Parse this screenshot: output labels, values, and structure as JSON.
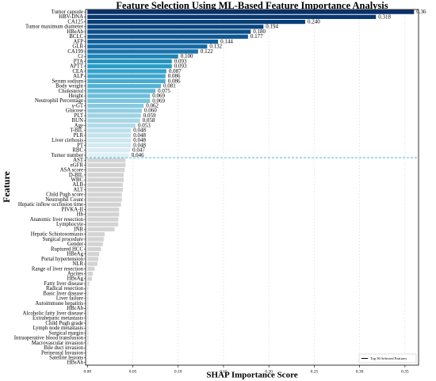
{
  "chart_data": {
    "type": "hbar",
    "title": "Feature Selection Using ML-Based Feature Importance Analysis",
    "xlabel": "SHAP Importance Score",
    "ylabel": "Feature",
    "categories": [
      "Tumor capsule",
      "HBV-DNA",
      "CA125",
      "Tumor maximum diameter",
      "HBeAb",
      "BCLC",
      "AFP",
      "GLR",
      "CA199",
      "Cr",
      "PTA",
      "APTT",
      "CEA",
      "ALP",
      "Serum sodium",
      "Body weight",
      "Cholesterol",
      "Height",
      "Neutrophil Percentage",
      "γ-GT",
      "Glucose",
      "PLT",
      "BUN",
      "Age",
      "T-BIL",
      "PLR",
      "Liver cirrhosis",
      "PT",
      "RBC",
      "Tumor number",
      "AST",
      "eGFR",
      "ASA score",
      "D-BIL",
      "WBC",
      "ALB",
      "ALT",
      "Child Pugh score",
      "Neutrophil Count",
      "Hepatic inflow occlusion time",
      "PIVKA-II",
      "Hb",
      "Anatomic liver resection",
      "Lymphocyte",
      "INR",
      "Hepatic Schistosomiasis",
      "Surgical procedure",
      "Gender",
      "Ruptured HCC",
      "HBeAg",
      "Portal hypertension",
      "NLR",
      "Range of liver resection",
      "Ascites",
      "HBsAg",
      "Fatty liver disease",
      "Radical resection",
      "Basic liver disease",
      "Liver failure",
      "Autoimmune hepatitis",
      "HBcAb",
      "Alcoholic fatty liver disease",
      "Extrahepatic metastasis",
      "Child Pugh grade",
      "Lymph node metastasis",
      "Surgical margin",
      "Intraoperative blood transfusion",
      "Macrovascular invasion",
      "Bile duct invasion",
      "Perineural Invasion",
      "Satellite lesions",
      "HBsAb"
    ],
    "values": [
      0.36,
      0.318,
      0.24,
      0.194,
      0.18,
      0.177,
      0.144,
      0.132,
      0.122,
      0.1,
      0.093,
      0.093,
      0.087,
      0.086,
      0.086,
      0.081,
      0.075,
      0.069,
      0.069,
      0.062,
      0.06,
      0.059,
      0.058,
      0.053,
      0.048,
      0.048,
      0.048,
      0.048,
      0.047,
      0.046,
      0.042,
      0.042,
      0.041,
      0.04,
      0.04,
      0.039,
      0.039,
      0.038,
      0.038,
      0.037,
      0.035,
      0.035,
      0.034,
      0.034,
      0.03,
      0.019,
      0.018,
      0.017,
      0.015,
      0.013,
      0.012,
      0.011,
      0.008,
      0.006,
      0.005,
      0.002,
      0.001,
      0.001,
      0.001,
      0.001,
      0.001,
      0.001,
      0.001,
      0.001,
      0.001,
      0.001,
      0.001,
      0.001,
      0,
      0,
      0,
      0
    ],
    "value_labels": [
      "0.36",
      "0.318",
      "0.240",
      "0.194",
      "0.180",
      "0.177",
      "0.144",
      "0.132",
      "0.122",
      "0.100",
      "0.093",
      "0.093",
      "0.087",
      "0.086",
      "0.086",
      "0.081",
      "0.075",
      "0.069",
      "0.069",
      "0.062",
      "0.060",
      "0.059",
      "0.058",
      "0.053",
      "0.048",
      "0.048",
      "0.048",
      "0.048",
      "0.047",
      "0.046",
      null,
      null,
      null,
      null,
      null,
      null,
      null,
      null,
      null,
      null,
      null,
      null,
      null,
      null,
      null,
      null,
      null,
      null,
      null,
      null,
      null,
      null,
      null,
      null,
      null,
      null,
      null,
      null,
      null,
      null,
      null,
      null,
      null,
      null,
      null,
      null,
      null,
      null,
      null,
      null,
      null,
      null
    ],
    "colors": [
      "#08306b",
      "#08386f",
      "#083f77",
      "#0a467f",
      "#0c4e88",
      "#0f5792",
      "#12609b",
      "#1669a4",
      "#1a73ad",
      "#1f86b6",
      "#2593c0",
      "#2b9bc6",
      "#35a1ca",
      "#40a7ce",
      "#4aacd1",
      "#56b2d4",
      "#62b8d7",
      "#6ebeda",
      "#7bc4dd",
      "#87c9df",
      "#93cee2",
      "#9ed3e4",
      "#a8d7e6",
      "#b2dbe9",
      "#bcdfeb",
      "#c5e3ed",
      "#cde7ef",
      "#d4eaf1",
      "#dbedf3",
      "#e1f0f5",
      "#d3d3d3",
      "#d3d3d3",
      "#d3d3d3",
      "#d3d3d3",
      "#d3d3d3",
      "#d3d3d3",
      "#d3d3d3",
      "#d3d3d3",
      "#d3d3d3",
      "#d3d3d3",
      "#d3d3d3",
      "#d3d3d3",
      "#d3d3d3",
      "#d3d3d3",
      "#d3d3d3",
      "#d3d3d3",
      "#d3d3d3",
      "#d3d3d3",
      "#d3d3d3",
      "#d3d3d3",
      "#d3d3d3",
      "#d3d3d3",
      "#d3d3d3",
      "#d3d3d3",
      "#d3d3d3",
      "#d3d3d3",
      "#d3d3d3",
      "#d3d3d3",
      "#d3d3d3",
      "#d3d3d3",
      "#d3d3d3",
      "#d3d3d3",
      "#d3d3d3",
      "#d3d3d3",
      "#d3d3d3",
      "#d3d3d3",
      "#d3d3d3",
      "#d3d3d3",
      "#d3d3d3",
      "#d3d3d3",
      "#d3d3d3",
      "#d3d3d3"
    ],
    "xlim": [
      -0.002,
      0.365
    ],
    "xticks": [
      {
        "value": 0,
        "label": "0.00"
      },
      {
        "value": 0.05,
        "label": "0.05"
      },
      {
        "value": 0.1,
        "label": "0.10"
      },
      {
        "value": 0.15,
        "label": "0.15"
      },
      {
        "value": 0.2,
        "label": "0.20"
      },
      {
        "value": 0.25,
        "label": "0.25"
      },
      {
        "value": 0.3,
        "label": "0.30"
      },
      {
        "value": 0.35,
        "label": "0.35"
      }
    ],
    "grid": true,
    "threshold_color": "#29b6d6",
    "legend": {
      "label": "Top 30 Selected Features",
      "corner": "lower right"
    }
  }
}
